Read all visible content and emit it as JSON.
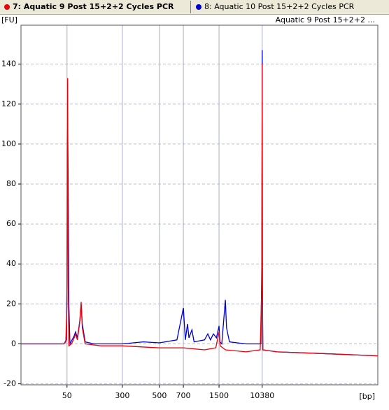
{
  "chart_data": {
    "type": "line",
    "title": "Aquatic 9 Post 15+2+2 ...",
    "y_label": "[FU]",
    "x_label": "[bp]",
    "xlim": [
      11,
      1760000
    ],
    "xticks": [
      50,
      300,
      500,
      700,
      1500,
      10380
    ],
    "ylim": [
      -20.5,
      159.5
    ],
    "yticks": [
      -20,
      0,
      20,
      40,
      60,
      80,
      100,
      120,
      140
    ],
    "grid": true,
    "series": [
      {
        "name": "7: Aquatic 9 Post 15+2+2 Cycles PCR",
        "color": "#e8000b",
        "x": [
          11,
          30,
          45,
          48,
          50,
          51,
          52,
          53,
          58,
          63,
          66,
          70,
          75,
          79,
          82,
          90,
          150,
          300,
          500,
          700,
          1100,
          1400,
          1500,
          1580,
          2000,
          5000,
          9500,
          10200,
          10380,
          10500,
          10700,
          20000,
          200000,
          1760000
        ],
        "values": [
          0,
          0,
          0,
          1,
          20,
          133,
          30,
          -1,
          0,
          3,
          5,
          2,
          10,
          21,
          8,
          0,
          -1,
          -1,
          -2,
          -2,
          -3,
          -2,
          6,
          -1,
          -3,
          -4,
          -3,
          30,
          140,
          20,
          -3,
          -4,
          -5,
          -6
        ]
      },
      {
        "name": "8: Aquatic 10 Post 15+2+2 Cycles PCR",
        "color": "#0000d0",
        "x": [
          11,
          45,
          49,
          50,
          50.5,
          51,
          52,
          53,
          55,
          63,
          66,
          70,
          76,
          79,
          82,
          90,
          120,
          300,
          400,
          500,
          640,
          700,
          730,
          765,
          790,
          840,
          880,
          1100,
          1180,
          1250,
          1330,
          1420,
          1500,
          1560,
          1700,
          1990,
          2100,
          2400,
          5000,
          9800,
          10200,
          10380,
          10500,
          10700,
          20000,
          200000,
          1760000
        ],
        "values": [
          0,
          0,
          2,
          33,
          95,
          110,
          80,
          20,
          0,
          4,
          6,
          3,
          12,
          20,
          10,
          1,
          0,
          0,
          1,
          0.5,
          2,
          18,
          2,
          10,
          3,
          7,
          1,
          2,
          5,
          2,
          5,
          3,
          9,
          1,
          0,
          22,
          8,
          1,
          0,
          0,
          40,
          147,
          30,
          -3,
          -4,
          -5,
          -6
        ]
      }
    ]
  }
}
